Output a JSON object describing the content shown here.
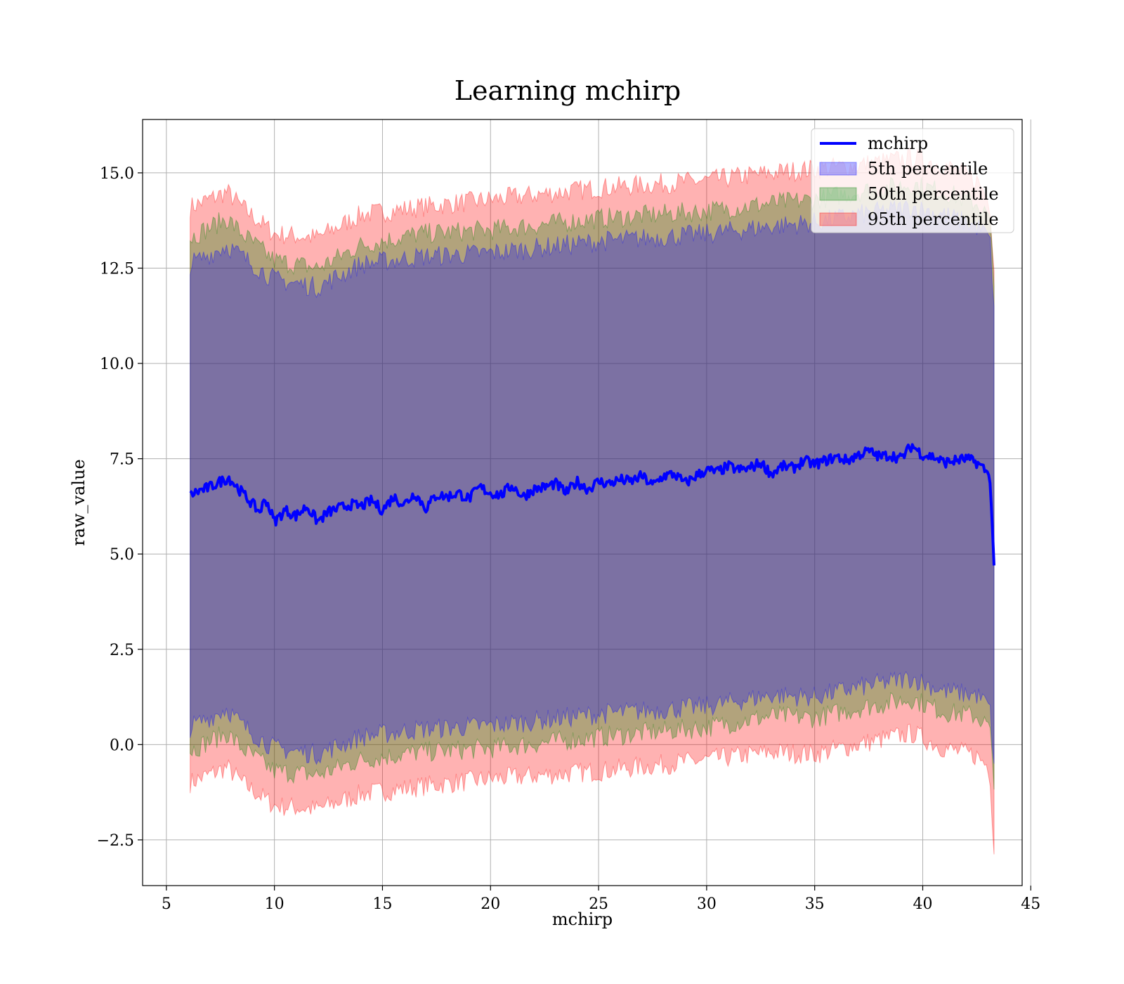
{
  "chart_data": {
    "type": "line",
    "title": "Learning mchirp",
    "xlabel": "mchirp",
    "ylabel": "raw_value",
    "xlim": [
      3.9,
      44.6
    ],
    "ylim": [
      -3.7,
      16.4
    ],
    "x_ticks": [
      5,
      10,
      15,
      20,
      25,
      30,
      35,
      40,
      45
    ],
    "x_tick_labels": [
      "5",
      "10",
      "15",
      "20",
      "25",
      "30",
      "35",
      "40",
      "45"
    ],
    "y_ticks": [
      -2.5,
      0.0,
      2.5,
      5.0,
      7.5,
      10.0,
      12.5,
      15.0
    ],
    "y_tick_labels": [
      "−2.5",
      "0.0",
      "2.5",
      "5.0",
      "7.5",
      "10.0",
      "12.5",
      "15.0"
    ],
    "grid": true,
    "legend_position": "top-right",
    "series": [
      {
        "name": "mchirp",
        "kind": "line",
        "color": "#0000ff",
        "x": [
          6.1,
          6.5,
          7.0,
          7.5,
          7.9,
          8.2,
          8.6,
          9.0,
          9.3,
          9.6,
          10.0,
          10.5,
          11.0,
          11.5,
          12.0,
          12.5,
          13.0,
          13.5,
          14.0,
          14.5,
          15.0,
          15.5,
          16.0,
          16.5,
          17.0,
          17.5,
          18.0,
          18.5,
          19.0,
          19.5,
          20.0,
          20.5,
          21.0,
          21.5,
          22.0,
          22.5,
          23.0,
          23.5,
          24.0,
          24.5,
          25.0,
          25.5,
          26.0,
          26.5,
          27.0,
          27.5,
          28.0,
          28.5,
          29.0,
          29.5,
          30.0,
          30.5,
          31.0,
          31.5,
          32.0,
          32.5,
          33.0,
          33.5,
          34.0,
          34.5,
          35.0,
          35.5,
          36.0,
          36.5,
          37.0,
          37.5,
          38.0,
          38.5,
          39.0,
          39.5,
          40.0,
          40.5,
          41.0,
          41.5,
          42.0,
          42.5,
          42.8,
          43.0,
          43.1,
          43.2,
          43.3
        ],
        "y": [
          6.55,
          6.65,
          6.75,
          6.9,
          7.0,
          6.8,
          6.55,
          6.3,
          6.1,
          6.45,
          5.85,
          6.15,
          6.0,
          6.25,
          5.85,
          6.1,
          6.2,
          6.3,
          6.25,
          6.4,
          6.15,
          6.5,
          6.3,
          6.6,
          6.2,
          6.55,
          6.5,
          6.6,
          6.45,
          6.75,
          6.6,
          6.55,
          6.8,
          6.5,
          6.7,
          6.75,
          6.85,
          6.6,
          6.9,
          6.7,
          6.9,
          6.85,
          6.95,
          6.9,
          7.05,
          6.8,
          7.05,
          7.1,
          6.85,
          7.05,
          7.2,
          7.15,
          7.3,
          7.2,
          7.25,
          7.4,
          7.1,
          7.3,
          7.25,
          7.45,
          7.35,
          7.45,
          7.55,
          7.45,
          7.6,
          7.7,
          7.55,
          7.6,
          7.5,
          7.85,
          7.6,
          7.55,
          7.4,
          7.45,
          7.5,
          7.4,
          7.25,
          7.15,
          7.0,
          6.0,
          4.7
        ]
      },
      {
        "name": "5th percentile",
        "kind": "band",
        "color": "#0000ff",
        "x": [
          6.1,
          7.8,
          8.5,
          10.0,
          12.0,
          14.0,
          16.7,
          20.0,
          25.0,
          30.0,
          33.0,
          35.0,
          37.0,
          39.5,
          41.0,
          42.5,
          43.1,
          43.3
        ],
        "lower": [
          0.45,
          0.95,
          0.5,
          -0.1,
          -0.25,
          0.2,
          0.4,
          0.5,
          0.8,
          1.0,
          1.3,
          1.25,
          1.5,
          1.75,
          1.4,
          1.3,
          1.0,
          -0.5
        ],
        "upper": [
          12.6,
          13.1,
          12.8,
          12.2,
          12.0,
          12.6,
          12.8,
          12.9,
          13.2,
          13.4,
          13.6,
          13.7,
          13.9,
          14.1,
          13.9,
          13.6,
          13.3,
          11.5
        ]
      },
      {
        "name": "50th percentile",
        "kind": "band",
        "color": "#008000",
        "x": [
          6.1,
          7.8,
          8.5,
          10.0,
          12.0,
          14.0,
          16.7,
          20.0,
          25.0,
          30.0,
          33.0,
          35.0,
          37.0,
          39.5,
          41.0,
          42.5,
          43.1,
          43.3
        ],
        "lower": [
          -0.15,
          0.3,
          -0.1,
          -0.7,
          -0.8,
          -0.4,
          -0.2,
          -0.1,
          0.2,
          0.45,
          0.75,
          0.7,
          0.95,
          1.2,
          0.85,
          0.75,
          0.45,
          -1.2
        ],
        "upper": [
          13.3,
          13.8,
          13.4,
          12.7,
          12.5,
          13.1,
          13.4,
          13.5,
          13.8,
          14.0,
          14.2,
          14.3,
          14.5,
          14.7,
          14.5,
          14.2,
          13.8,
          12.0
        ]
      },
      {
        "name": "95th percentile",
        "kind": "band",
        "color": "#ff0000",
        "x": [
          6.1,
          7.8,
          8.5,
          10.0,
          12.0,
          14.0,
          16.7,
          20.0,
          25.0,
          30.0,
          33.0,
          35.0,
          37.0,
          39.5,
          41.0,
          42.5,
          43.1,
          43.3
        ],
        "lower": [
          -1.0,
          -0.6,
          -1.0,
          -1.6,
          -1.7,
          -1.3,
          -1.1,
          -0.9,
          -0.7,
          -0.4,
          -0.2,
          -0.25,
          0.0,
          0.3,
          -0.1,
          -0.3,
          -0.6,
          -2.8
        ],
        "upper": [
          14.1,
          14.5,
          14.1,
          13.4,
          13.3,
          13.9,
          14.1,
          14.3,
          14.6,
          14.8,
          15.0,
          15.1,
          15.2,
          15.4,
          15.2,
          14.8,
          14.3,
          12.5
        ]
      }
    ]
  }
}
